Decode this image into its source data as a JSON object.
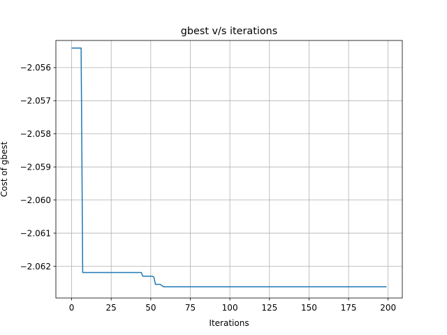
{
  "chart_data": {
    "type": "line",
    "title": "gbest v/s iterations",
    "xlabel": "Iterations",
    "ylabel": "Cost of gbest",
    "xlim": [
      -9.95,
      208.95
    ],
    "ylim": [
      -2.06296,
      -2.05518
    ],
    "xticks": [
      0,
      25,
      50,
      75,
      100,
      125,
      150,
      175,
      200
    ],
    "xtick_labels": [
      "0",
      "25",
      "50",
      "75",
      "100",
      "125",
      "150",
      "175",
      "200"
    ],
    "yticks": [
      -2.056,
      -2.057,
      -2.058,
      -2.059,
      -2.06,
      -2.061,
      -2.062
    ],
    "ytick_labels": [
      "−2.056",
      "−2.057",
      "−2.058",
      "−2.059",
      "−2.060",
      "−2.061",
      "−2.062"
    ],
    "grid": true,
    "line_color": "#1f77b4",
    "series": [
      {
        "x": [
          0,
          6,
          7,
          44,
          45,
          51,
          52,
          53,
          56,
          57,
          58,
          59,
          199
        ],
        "y": [
          -2.05541,
          -2.05541,
          -2.06219,
          -2.06219,
          -2.0623,
          -2.0623,
          -2.06233,
          -2.06255,
          -2.06255,
          -2.06258,
          -2.06262,
          -2.06262,
          -2.06262
        ]
      }
    ]
  }
}
